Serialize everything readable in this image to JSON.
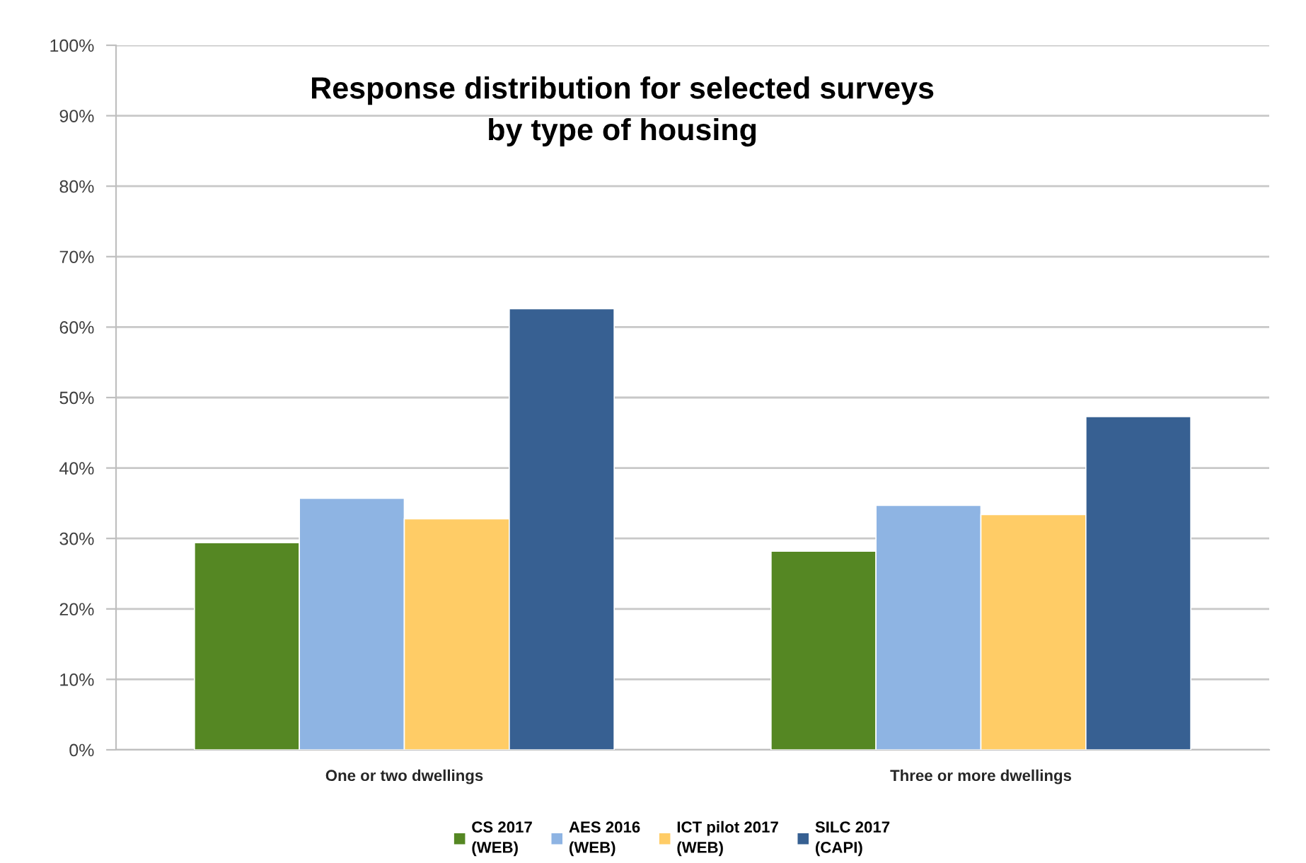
{
  "chart_data": {
    "type": "bar",
    "title": "Response distribution for selected surveys\nby type of housing",
    "categories": [
      "One or two dwellings",
      "Three or more dwellings"
    ],
    "series": [
      {
        "name": "CS 2017\n(WEB)",
        "color": "#558723",
        "values": [
          29.4,
          28.2
        ]
      },
      {
        "name": "AES 2016\n(WEB)",
        "color": "#8eb4e3",
        "values": [
          35.7,
          34.7
        ]
      },
      {
        "name": "ICT pilot 2017\n(WEB)",
        "color": "#ffcc66",
        "values": [
          32.8,
          33.4
        ]
      },
      {
        "name": "SILC 2017\n(CAPI)",
        "color": "#376092",
        "values": [
          62.6,
          47.3
        ]
      }
    ],
    "ylim": [
      0,
      100
    ],
    "yticks": [
      {
        "value": 0,
        "label": "0%"
      },
      {
        "value": 10,
        "label": "10%"
      },
      {
        "value": 20,
        "label": "20%"
      },
      {
        "value": 30,
        "label": "30%"
      },
      {
        "value": 40,
        "label": "40%"
      },
      {
        "value": 50,
        "label": "50%"
      },
      {
        "value": 60,
        "label": "60%"
      },
      {
        "value": 70,
        "label": "70%"
      },
      {
        "value": 80,
        "label": "80%"
      },
      {
        "value": 90,
        "label": "90%"
      },
      {
        "value": 100,
        "label": "100%"
      }
    ],
    "grid": "y",
    "legend": "bottom"
  }
}
